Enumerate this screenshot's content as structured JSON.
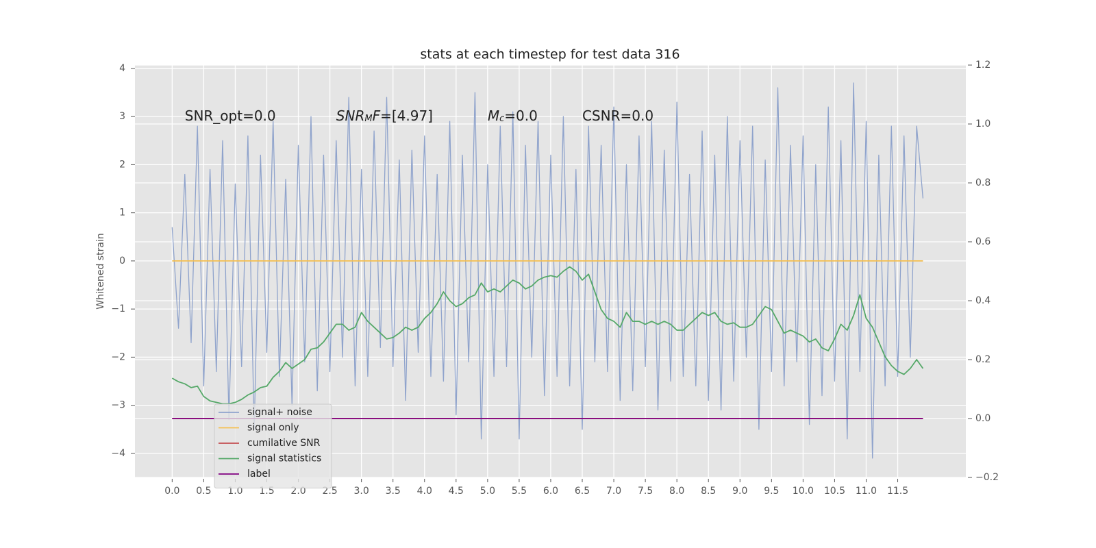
{
  "chart_data": {
    "type": "line",
    "title": "stats at each timestep for test data 316",
    "y_label": "Whitened strain",
    "x": [
      0.0,
      0.1,
      0.2,
      0.3,
      0.4,
      0.5,
      0.6,
      0.7,
      0.8,
      0.9,
      1.0,
      1.1,
      1.2,
      1.3,
      1.4,
      1.5,
      1.6,
      1.7,
      1.8,
      1.9,
      2.0,
      2.1,
      2.2,
      2.3,
      2.4,
      2.5,
      2.6,
      2.7,
      2.8,
      2.9,
      3.0,
      3.1,
      3.2,
      3.3,
      3.4,
      3.5,
      3.6,
      3.7,
      3.8,
      3.9,
      4.0,
      4.1,
      4.2,
      4.3,
      4.4,
      4.5,
      4.6,
      4.7,
      4.8,
      4.9,
      5.0,
      5.1,
      5.2,
      5.3,
      5.4,
      5.5,
      5.6,
      5.7,
      5.8,
      5.9,
      6.0,
      6.1,
      6.2,
      6.3,
      6.4,
      6.5,
      6.6,
      6.7,
      6.8,
      6.9,
      7.0,
      7.1,
      7.2,
      7.3,
      7.4,
      7.5,
      7.6,
      7.7,
      7.8,
      7.9,
      8.0,
      8.1,
      8.2,
      8.3,
      8.4,
      8.5,
      8.6,
      8.7,
      8.8,
      8.9,
      9.0,
      9.1,
      9.2,
      9.3,
      9.4,
      9.5,
      9.6,
      9.7,
      9.8,
      9.9,
      10.0,
      10.1,
      10.2,
      10.3,
      10.4,
      10.5,
      10.6,
      10.7,
      10.8,
      10.9,
      11.0,
      11.1,
      11.2,
      11.3,
      11.4,
      11.5,
      11.6,
      11.7,
      11.8,
      11.9
    ],
    "series": [
      {
        "name": "signal+ noise",
        "color": "#8fa3cc",
        "axis": "y",
        "values": [
          0.7,
          -1.4,
          1.8,
          -1.7,
          2.8,
          -2.6,
          1.9,
          -2.3,
          2.5,
          -3.3,
          1.6,
          -2.2,
          2.6,
          -3.5,
          2.2,
          -1.9,
          2.9,
          -2.4,
          1.7,
          -3.0,
          2.4,
          -2.1,
          3.0,
          -2.7,
          2.2,
          -2.3,
          2.5,
          -2.0,
          3.4,
          -2.6,
          1.9,
          -2.4,
          2.7,
          -1.8,
          3.4,
          -2.2,
          2.1,
          -2.9,
          2.3,
          -1.9,
          2.6,
          -2.4,
          1.8,
          -2.5,
          2.9,
          -3.2,
          2.2,
          -2.1,
          3.5,
          -3.7,
          2.0,
          -2.4,
          2.8,
          -2.2,
          3.1,
          -3.7,
          2.4,
          -2.0,
          2.9,
          -2.8,
          2.2,
          -2.4,
          3.0,
          -2.6,
          1.9,
          -3.5,
          2.8,
          -2.1,
          2.4,
          -2.3,
          3.2,
          -2.9,
          2.0,
          -2.7,
          2.6,
          -2.2,
          2.9,
          -3.1,
          2.3,
          -2.5,
          3.3,
          -2.4,
          1.8,
          -2.6,
          2.7,
          -2.9,
          2.2,
          -3.1,
          3.0,
          -2.5,
          2.5,
          -2.0,
          2.8,
          -3.5,
          2.1,
          -2.3,
          3.6,
          -2.6,
          2.4,
          -2.1,
          2.6,
          -3.4,
          2.0,
          -2.8,
          3.2,
          -2.5,
          2.5,
          -3.7,
          3.7,
          -2.3,
          2.9,
          -4.1,
          2.2,
          -2.6,
          2.8,
          -2.4,
          2.6,
          -2.0,
          2.8,
          1.3
        ]
      },
      {
        "name": "signal only",
        "color": "#f5bf4f",
        "axis": "y",
        "values": [
          0,
          0,
          0,
          0,
          0,
          0,
          0,
          0,
          0,
          0,
          0,
          0,
          0,
          0,
          0,
          0,
          0,
          0,
          0,
          0,
          0,
          0,
          0,
          0,
          0,
          0,
          0,
          0,
          0,
          0,
          0,
          0,
          0,
          0,
          0,
          0,
          0,
          0,
          0,
          0,
          0,
          0,
          0,
          0,
          0,
          0,
          0,
          0,
          0,
          0,
          0,
          0,
          0,
          0,
          0,
          0,
          0,
          0,
          0,
          0,
          0,
          0,
          0,
          0,
          0,
          0,
          0,
          0,
          0,
          0,
          0,
          0,
          0,
          0,
          0,
          0,
          0,
          0,
          0,
          0,
          0,
          0,
          0,
          0,
          0,
          0,
          0,
          0,
          0,
          0,
          0,
          0,
          0,
          0,
          0,
          0,
          0,
          0,
          0,
          0,
          0,
          0,
          0,
          0,
          0,
          0,
          0,
          0,
          0,
          0,
          0,
          0,
          0,
          0,
          0,
          0,
          0,
          0,
          0,
          0
        ]
      },
      {
        "name": "cumilative SNR",
        "color": "#c44e52",
        "axis": "y2",
        "values": [
          0,
          0,
          0,
          0,
          0,
          0,
          0,
          0,
          0,
          0,
          0,
          0,
          0,
          0,
          0,
          0,
          0,
          0,
          0,
          0,
          0,
          0,
          0,
          0,
          0,
          0,
          0,
          0,
          0,
          0,
          0,
          0,
          0,
          0,
          0,
          0,
          0,
          0,
          0,
          0,
          0,
          0,
          0,
          0,
          0,
          0,
          0,
          0,
          0,
          0,
          0,
          0,
          0,
          0,
          0,
          0,
          0,
          0,
          0,
          0,
          0,
          0,
          0,
          0,
          0,
          0,
          0,
          0,
          0,
          0,
          0,
          0,
          0,
          0,
          0,
          0,
          0,
          0,
          0,
          0,
          0,
          0,
          0,
          0,
          0,
          0,
          0,
          0,
          0,
          0,
          0,
          0,
          0,
          0,
          0,
          0,
          0,
          0,
          0,
          0,
          0,
          0,
          0,
          0,
          0,
          0,
          0,
          0,
          0,
          0,
          0,
          0,
          0,
          0,
          0,
          0,
          0,
          0,
          0,
          0
        ]
      },
      {
        "name": "signal statistics",
        "color": "#55a868",
        "axis": "y2",
        "values": [
          0.137,
          0.125,
          0.118,
          0.105,
          0.11,
          0.075,
          0.06,
          0.055,
          0.05,
          0.05,
          0.055,
          0.065,
          0.08,
          0.09,
          0.105,
          0.11,
          0.14,
          0.16,
          0.19,
          0.17,
          0.185,
          0.2,
          0.235,
          0.24,
          0.26,
          0.29,
          0.32,
          0.32,
          0.3,
          0.31,
          0.36,
          0.33,
          0.31,
          0.29,
          0.27,
          0.275,
          0.29,
          0.31,
          0.3,
          0.31,
          0.34,
          0.36,
          0.39,
          0.43,
          0.4,
          0.38,
          0.39,
          0.41,
          0.42,
          0.46,
          0.43,
          0.44,
          0.43,
          0.45,
          0.47,
          0.46,
          0.44,
          0.45,
          0.47,
          0.48,
          0.485,
          0.48,
          0.5,
          0.515,
          0.5,
          0.47,
          0.49,
          0.43,
          0.37,
          0.34,
          0.33,
          0.31,
          0.36,
          0.33,
          0.33,
          0.32,
          0.33,
          0.32,
          0.33,
          0.32,
          0.3,
          0.3,
          0.32,
          0.34,
          0.36,
          0.35,
          0.36,
          0.33,
          0.32,
          0.325,
          0.31,
          0.31,
          0.32,
          0.35,
          0.38,
          0.37,
          0.33,
          0.29,
          0.3,
          0.29,
          0.28,
          0.26,
          0.27,
          0.24,
          0.23,
          0.27,
          0.32,
          0.3,
          0.35,
          0.42,
          0.34,
          0.31,
          0.26,
          0.21,
          0.18,
          0.16,
          0.15,
          0.17,
          0.2,
          0.17
        ]
      },
      {
        "name": "label",
        "color": "#800080",
        "axis": "y2",
        "values": [
          0,
          0,
          0,
          0,
          0,
          0,
          0,
          0,
          0,
          0,
          0,
          0,
          0,
          0,
          0,
          0,
          0,
          0,
          0,
          0,
          0,
          0,
          0,
          0,
          0,
          0,
          0,
          0,
          0,
          0,
          0,
          0,
          0,
          0,
          0,
          0,
          0,
          0,
          0,
          0,
          0,
          0,
          0,
          0,
          0,
          0,
          0,
          0,
          0,
          0,
          0,
          0,
          0,
          0,
          0,
          0,
          0,
          0,
          0,
          0,
          0,
          0,
          0,
          0,
          0,
          0,
          0,
          0,
          0,
          0,
          0,
          0,
          0,
          0,
          0,
          0,
          0,
          0,
          0,
          0,
          0,
          0,
          0,
          0,
          0,
          0,
          0,
          0,
          0,
          0,
          0,
          0,
          0,
          0,
          0,
          0,
          0,
          0,
          0,
          0,
          0,
          0,
          0,
          0,
          0,
          0,
          0,
          0,
          0,
          0,
          0,
          0,
          0,
          0,
          0,
          0,
          0,
          0,
          0,
          0
        ]
      }
    ],
    "annotations": [
      {
        "x": 0.2,
        "y": 3,
        "segments": [
          {
            "text": "SNR_opt=0.0"
          }
        ]
      },
      {
        "x": 2.6,
        "y": 3,
        "segments": [
          {
            "text": "SNR",
            "italic": true
          },
          {
            "text": "M",
            "italic": true,
            "sub": true
          },
          {
            "text": "F",
            "italic": true
          },
          {
            "text": "=[4.97]"
          }
        ]
      },
      {
        "x": 5.0,
        "y": 3,
        "segments": [
          {
            "text": "M",
            "italic": true
          },
          {
            "text": "c",
            "italic": true,
            "sub": true
          },
          {
            "text": "=0.0"
          }
        ]
      },
      {
        "x": 6.5,
        "y": 3,
        "segments": [
          {
            "text": "CSNR=0.0"
          }
        ]
      }
    ],
    "xlim": [
      -0.59,
      12.58
    ],
    "xticks": [
      {
        "value": 0,
        "label": "0.0"
      },
      {
        "value": 0.5,
        "label": "0.5"
      },
      {
        "value": 1,
        "label": "1.0"
      },
      {
        "value": 1.5,
        "label": "1.5"
      },
      {
        "value": 2,
        "label": "2.0"
      },
      {
        "value": 2.5,
        "label": "2.5"
      },
      {
        "value": 3,
        "label": "3.0"
      },
      {
        "value": 3.5,
        "label": "3.5"
      },
      {
        "value": 4,
        "label": "4.0"
      },
      {
        "value": 4.5,
        "label": "4.5"
      },
      {
        "value": 5,
        "label": "5.0"
      },
      {
        "value": 5.5,
        "label": "5.5"
      },
      {
        "value": 6,
        "label": "6.0"
      },
      {
        "value": 6.5,
        "label": "6.5"
      },
      {
        "value": 7,
        "label": "7.0"
      },
      {
        "value": 7.5,
        "label": "7.5"
      },
      {
        "value": 8,
        "label": "8.0"
      },
      {
        "value": 8.5,
        "label": "8.5"
      },
      {
        "value": 9,
        "label": "9.0"
      },
      {
        "value": 9.5,
        "label": "9.5"
      },
      {
        "value": 10,
        "label": "10.0"
      },
      {
        "value": 10.5,
        "label": "10.5"
      },
      {
        "value": 11,
        "label": "11.0"
      },
      {
        "value": 11.5,
        "label": "11.5"
      }
    ],
    "ylim": [
      -4.5,
      4.07
    ],
    "yticks": [
      {
        "value": -4,
        "label": "−4"
      },
      {
        "value": -3,
        "label": "−3"
      },
      {
        "value": -2,
        "label": "−2"
      },
      {
        "value": -1,
        "label": "−1"
      },
      0,
      1,
      2,
      3,
      4
    ],
    "y2lim": [
      -0.2,
      1.2
    ],
    "y2ticks": [
      {
        "value": -0.2,
        "label": "−0.2"
      },
      {
        "value": 0,
        "label": "0.0"
      },
      {
        "value": 0.2,
        "label": "0.2"
      },
      {
        "value": 0.4,
        "label": "0.4"
      },
      {
        "value": 0.6,
        "label": "0.6"
      },
      {
        "value": 0.8,
        "label": "0.8"
      },
      {
        "value": 1,
        "label": "1.0"
      },
      {
        "value": 1.2,
        "label": "1.2"
      }
    ],
    "grid": true,
    "legend": "lower left"
  }
}
